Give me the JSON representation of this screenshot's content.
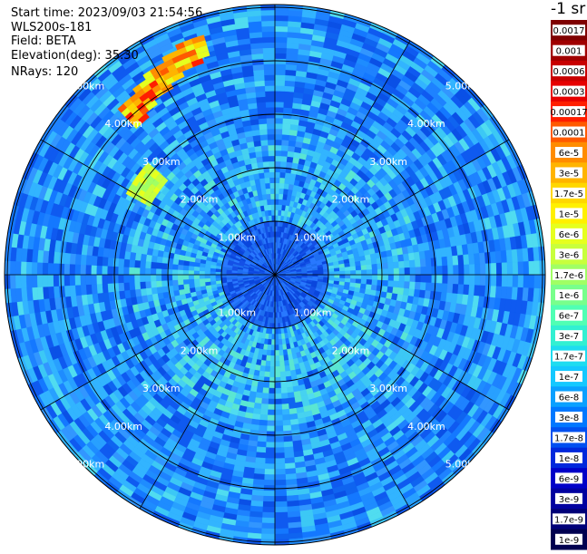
{
  "header": {
    "start_time": "Start time: 2023/09/03 21:54:56",
    "instrument": "WLS200s-181",
    "field": "Field: BETA",
    "elevation": "Elevation(deg): 35.30",
    "nrays": "NRays: 120"
  },
  "colorbar": {
    "unit": "-1 sr",
    "labels": [
      "0.0017",
      "0.001",
      "0.0006",
      "0.0003",
      "0.00017",
      "0.0001",
      "6e-5",
      "3e-5",
      "1.7e-5",
      "1e-5",
      "6e-6",
      "3e-6",
      "1.7e-6",
      "1e-6",
      "6e-7",
      "3e-7",
      "1.7e-7",
      "1e-7",
      "6e-8",
      "3e-8",
      "1.7e-8",
      "1e-8",
      "6e-9",
      "3e-9",
      "1.7e-9",
      "1e-9"
    ],
    "colors": [
      "#7f0000",
      "#a00000",
      "#c80000",
      "#e60000",
      "#ff1e00",
      "#ff5a00",
      "#ff8c00",
      "#ffb400",
      "#ffd700",
      "#fff000",
      "#e6ff1e",
      "#c8ff3c",
      "#a0ff64",
      "#78ff8c",
      "#50ffb4",
      "#32f0d2",
      "#1edcf0",
      "#14c8ff",
      "#0aa0ff",
      "#0078ff",
      "#0050f0",
      "#0028dc",
      "#0000c8",
      "#0000a0",
      "#000078",
      "#000050"
    ]
  },
  "polar": {
    "ring_labels": [
      "1.00km",
      "2.00km",
      "3.00km",
      "4.00km",
      "5.00km"
    ],
    "max_range_km": 5.0,
    "nrays": 120
  }
}
